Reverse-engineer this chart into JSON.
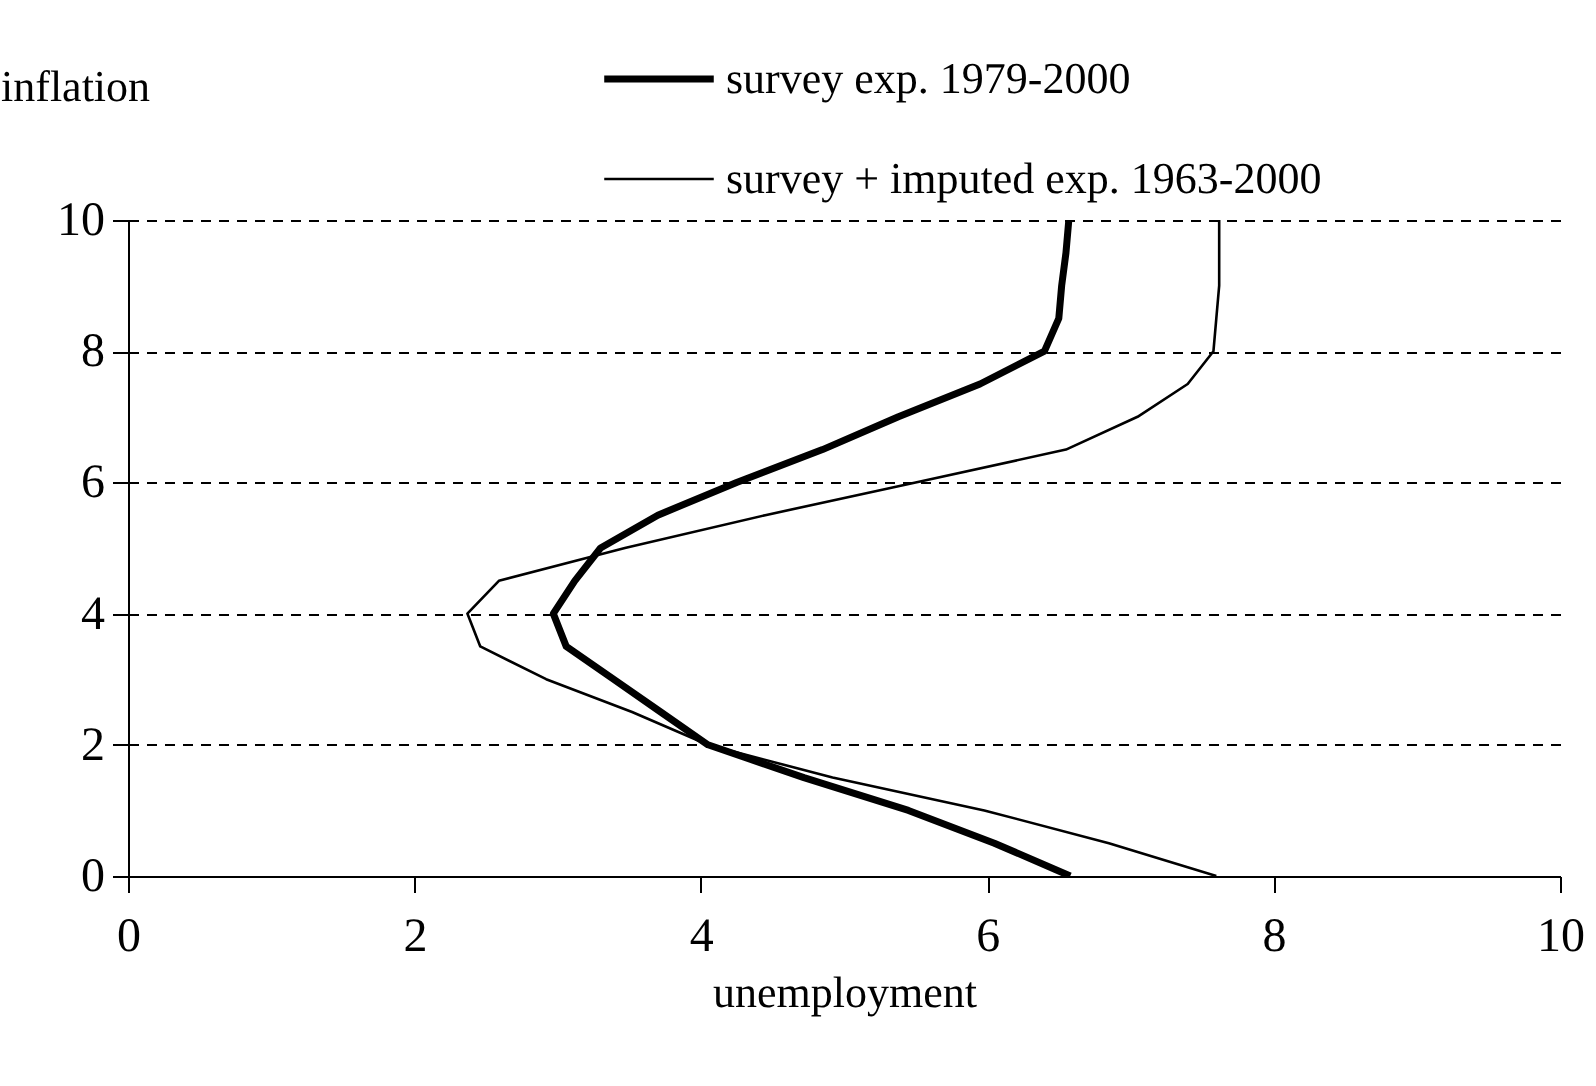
{
  "chart_data": {
    "type": "line",
    "xlabel": "unemployment",
    "ylabel": "inflation",
    "xlim": [
      0,
      10
    ],
    "xticks": [
      0,
      2,
      4,
      6,
      8,
      10
    ],
    "ylim": [
      0,
      10
    ],
    "yticks": [
      0,
      2,
      4,
      6,
      8,
      10
    ],
    "grid": "y",
    "legend": "top right",
    "line_style": "solid",
    "marker": "none",
    "series": [
      {
        "name": "survey exp. 1979-2000",
        "color": "#000000",
        "x": [
          6.58,
          6.05,
          5.45,
          4.72,
          4.05,
          3.72,
          3.39,
          3.06,
          2.97,
          3.12,
          3.3,
          3.7,
          4.25,
          4.85,
          5.38,
          5.95,
          6.4,
          6.5,
          6.52,
          6.55,
          6.57
        ],
        "values": [
          0,
          0.5,
          1,
          1.5,
          2,
          2.5,
          3,
          3.5,
          4,
          4.5,
          5,
          5.5,
          6,
          6.5,
          7,
          7.5,
          8,
          8.5,
          9,
          9.5,
          10
        ]
      },
      {
        "name": "survey + imputed exp. 1963-2000",
        "color": "#000000",
        "x": [
          7.6,
          6.85,
          5.98,
          4.92,
          4.05,
          3.52,
          2.92,
          2.46,
          2.37,
          2.59,
          3.47,
          4.45,
          5.5,
          6.55,
          7.05,
          7.4,
          7.58,
          7.6,
          7.62,
          7.62,
          7.62
        ],
        "values": [
          0,
          0.5,
          1,
          1.5,
          2,
          2.5,
          3,
          3.5,
          4,
          4.5,
          5,
          5.5,
          6,
          6.5,
          7,
          7.5,
          8,
          8.5,
          9,
          9.5,
          10
        ]
      }
    ]
  }
}
